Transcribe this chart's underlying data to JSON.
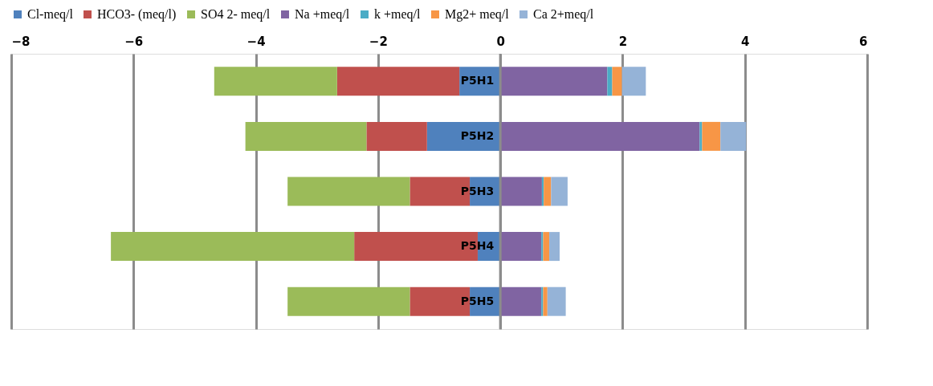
{
  "chart_data": {
    "type": "bar",
    "orientation": "horizontal",
    "stacked": true,
    "categories": [
      "P5H1",
      "P5H2",
      "P5H3",
      "P5H4",
      "P5H5"
    ],
    "series": [
      {
        "name": "Cl-meq/l",
        "color": "#4f81bd",
        "values": [
          -0.67,
          -1.2,
          -0.5,
          -0.37,
          -0.5
        ]
      },
      {
        "name": "HCO3- (meq/l)",
        "color": "#c0504d",
        "values": [
          -2.0,
          -0.99,
          -0.98,
          -2.02,
          -0.98
        ]
      },
      {
        "name": "SO4 2- meq/l",
        "color": "#9bbb59",
        "values": [
          -2.01,
          -1.98,
          -2.0,
          -3.98,
          -2.0
        ]
      },
      {
        "name": "Na +meq/l",
        "color": "#8064a2",
        "values": [
          1.75,
          3.26,
          0.68,
          0.67,
          0.67
        ]
      },
      {
        "name": "k +meq/l",
        "color": "#4bacc6",
        "values": [
          0.08,
          0.04,
          0.03,
          0.03,
          0.03
        ]
      },
      {
        "name": "Mg2+ meq/l",
        "color": "#f79646",
        "values": [
          0.16,
          0.3,
          0.12,
          0.1,
          0.07
        ]
      },
      {
        "name": "Ca 2+meq/l",
        "color": "#95b3d7",
        "values": [
          0.39,
          0.42,
          0.27,
          0.17,
          0.3
        ]
      }
    ],
    "xlim": [
      -8,
      6
    ],
    "xticks": [
      -8,
      -6,
      -4,
      -2,
      0,
      2,
      4,
      6
    ],
    "grid": "x",
    "legend": "top"
  }
}
